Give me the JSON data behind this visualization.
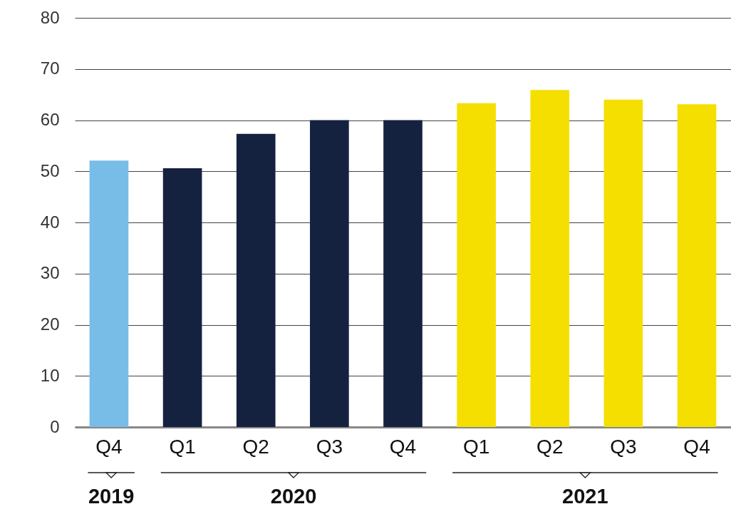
{
  "chart_data": {
    "type": "bar",
    "categories": [
      "Q4",
      "Q1",
      "Q2",
      "Q3",
      "Q4",
      "Q1",
      "Q2",
      "Q3",
      "Q4"
    ],
    "series": [
      {
        "name": "2019",
        "color": "#78bde8",
        "values": [
          52.1,
          null,
          null,
          null,
          null,
          null,
          null,
          null,
          null
        ]
      },
      {
        "name": "2020",
        "color": "#15223f",
        "values": [
          null,
          50.6,
          57.3,
          60,
          60,
          null,
          null,
          null,
          null
        ]
      },
      {
        "name": "2021",
        "color": "#f5df00",
        "values": [
          null,
          null,
          null,
          null,
          null,
          63.3,
          65.9,
          64,
          63.1
        ]
      }
    ],
    "ylim": [
      0,
      80
    ],
    "yticks": [
      0,
      10,
      20,
      30,
      40,
      50,
      60,
      70,
      80
    ],
    "grid": "y"
  }
}
